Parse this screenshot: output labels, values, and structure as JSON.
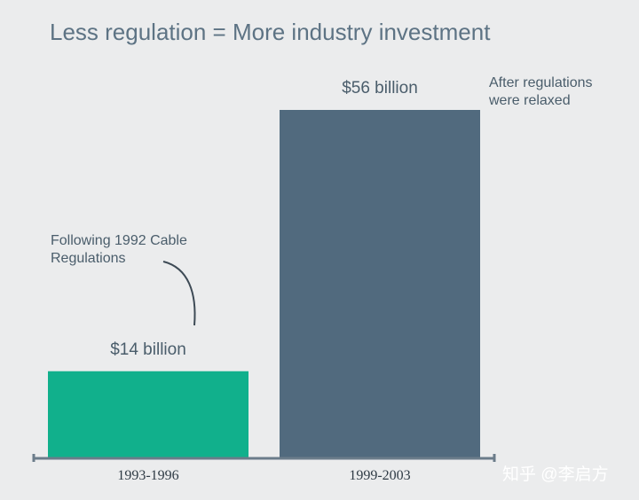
{
  "chart_data": {
    "type": "bar",
    "title": "Less regulation = More industry investment",
    "categories": [
      "1993-1996",
      "1999-2003"
    ],
    "values": [
      14,
      56
    ],
    "value_labels": [
      "$14 billion",
      "$56 billion"
    ],
    "unit": "billion USD",
    "colors": [
      "#11b08c",
      "#516a7e"
    ],
    "ylim": [
      0,
      56
    ],
    "grid": false,
    "legend": "none",
    "annotations": [
      {
        "bar_index": 0,
        "lines": [
          "Following 1992 Cable",
          "Regulations"
        ]
      },
      {
        "bar_index": 1,
        "lines": [
          "After regulations",
          "were relaxed"
        ]
      }
    ]
  },
  "watermark": "知乎 @李启方",
  "axis_color": "#6b7c8a"
}
